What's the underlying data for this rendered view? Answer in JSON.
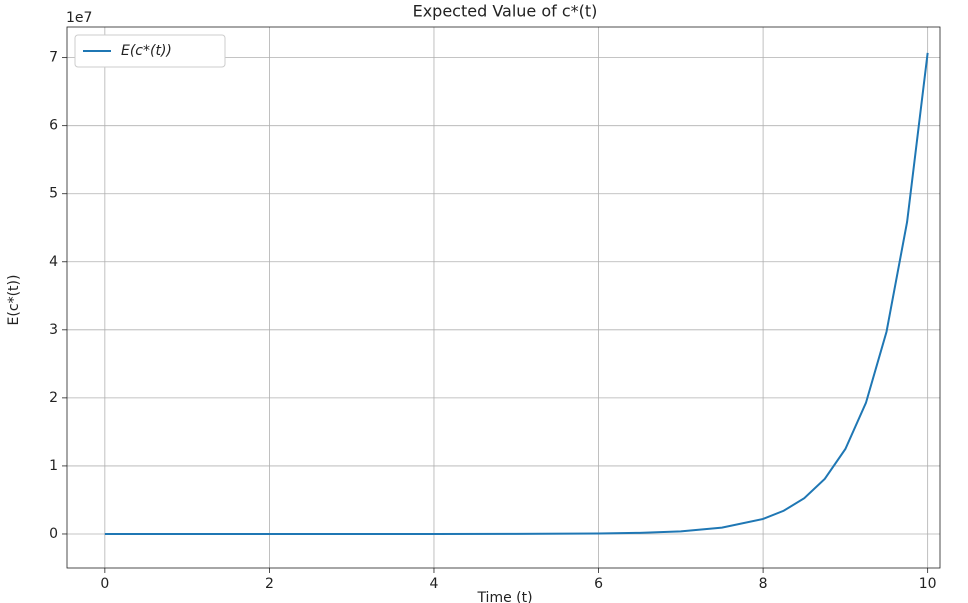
{
  "chart_data": {
    "type": "line",
    "title": "Expected Value of c*(t)",
    "x_label": "Time (t)",
    "y_label": "E(c*(t))",
    "y_offset_label": "1e7",
    "x": [
      0,
      1,
      2,
      3,
      4,
      5,
      6,
      6.5,
      7,
      7.5,
      8,
      8.25,
      8.5,
      8.75,
      9,
      9.25,
      9.5,
      9.75,
      10
    ],
    "series": [
      {
        "name": "E(c*(t))",
        "color": "#1f77b4",
        "values": [
          0,
          0,
          0,
          0,
          0.0002,
          0.0012,
          0.0069,
          0.0164,
          0.039,
          0.0928,
          0.221,
          0.341,
          0.525,
          0.81,
          1.249,
          1.927,
          2.972,
          4.585,
          7.07
        ]
      }
    ],
    "xlim": [
      -0.46,
      10.15
    ],
    "xticks": [
      0,
      2,
      4,
      6,
      8,
      10
    ],
    "ylim": [
      -0.5,
      7.45
    ],
    "yticks": [
      0,
      1,
      2,
      3,
      4,
      5,
      6,
      7
    ],
    "grid": true,
    "legend": "upper left"
  }
}
